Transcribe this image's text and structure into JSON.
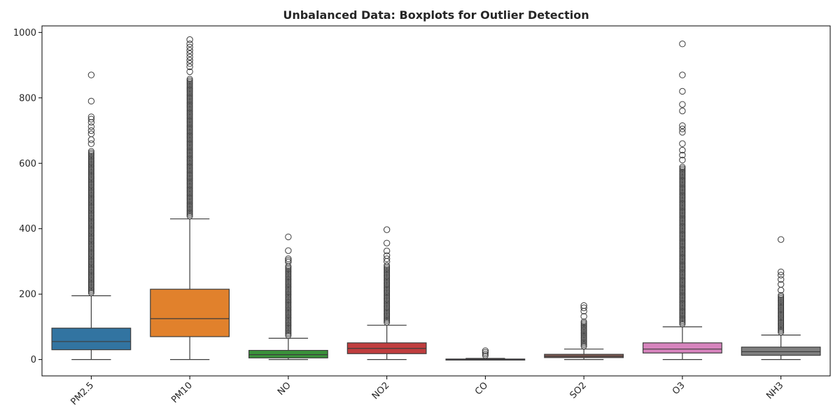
{
  "chart_data": {
    "type": "boxplot",
    "title": "Unbalanced Data: Boxplots for Outlier Detection",
    "xlabel": "",
    "ylabel": "",
    "ylim": [
      -50,
      1020
    ],
    "y_ticks": [
      0,
      200,
      400,
      600,
      800,
      1000
    ],
    "grid": false,
    "categories": [
      "PM2.5",
      "PM10",
      "NO",
      "NO2",
      "CO",
      "SO2",
      "O3",
      "NH3"
    ],
    "series": [
      {
        "category": "PM2.5",
        "color": "#3274a1",
        "whisker_low": 0,
        "q1": 30,
        "median": 55,
        "q3": 96,
        "whisker_high": 195,
        "dense_outliers_to": 640,
        "outliers": [
          660,
          672,
          690,
          700,
          712,
          725,
          735,
          742,
          790,
          870
        ]
      },
      {
        "category": "PM10",
        "color": "#e1812c",
        "whisker_low": 0,
        "q1": 70,
        "median": 125,
        "q3": 215,
        "whisker_high": 430,
        "dense_outliers_to": 860,
        "outliers": [
          880,
          895,
          905,
          915,
          925,
          935,
          945,
          955,
          965,
          978
        ]
      },
      {
        "category": "NO",
        "color": "#3a923a",
        "whisker_low": 0,
        "q1": 5,
        "median": 15,
        "q3": 28,
        "whisker_high": 65,
        "dense_outliers_to": 290,
        "outliers": [
          298,
          303,
          308,
          333,
          375
        ]
      },
      {
        "category": "NO2",
        "color": "#c03d3e",
        "whisker_low": 0,
        "q1": 18,
        "median": 34,
        "q3": 51,
        "whisker_high": 105,
        "dense_outliers_to": 290,
        "outliers": [
          300,
          308,
          318,
          332,
          356,
          397
        ]
      },
      {
        "category": "CO",
        "color": "#9372b2",
        "whisker_low": 0,
        "q1": 0.5,
        "median": 0.9,
        "q3": 1.6,
        "whisker_high": 3.5,
        "dense_outliers_to": 18,
        "outliers": [
          22,
          27
        ]
      },
      {
        "category": "SO2",
        "color": "#845b53",
        "whisker_low": 0,
        "q1": 6,
        "median": 10,
        "q3": 16,
        "whisker_high": 32,
        "dense_outliers_to": 120,
        "outliers": [
          132,
          148,
          158,
          165
        ]
      },
      {
        "category": "O3",
        "color": "#d684bd",
        "whisker_low": 0,
        "q1": 20,
        "median": 32,
        "q3": 51,
        "whisker_high": 100,
        "dense_outliers_to": 590,
        "outliers": [
          610,
          625,
          640,
          660,
          695,
          705,
          715,
          760,
          780,
          820,
          870,
          965
        ]
      },
      {
        "category": "NH3",
        "color": "#7f7f7f",
        "whisker_low": 0,
        "q1": 13,
        "median": 24,
        "q3": 38,
        "whisker_high": 75,
        "dense_outliers_to": 200,
        "outliers": [
          212,
          230,
          245,
          258,
          268,
          367
        ]
      }
    ]
  }
}
